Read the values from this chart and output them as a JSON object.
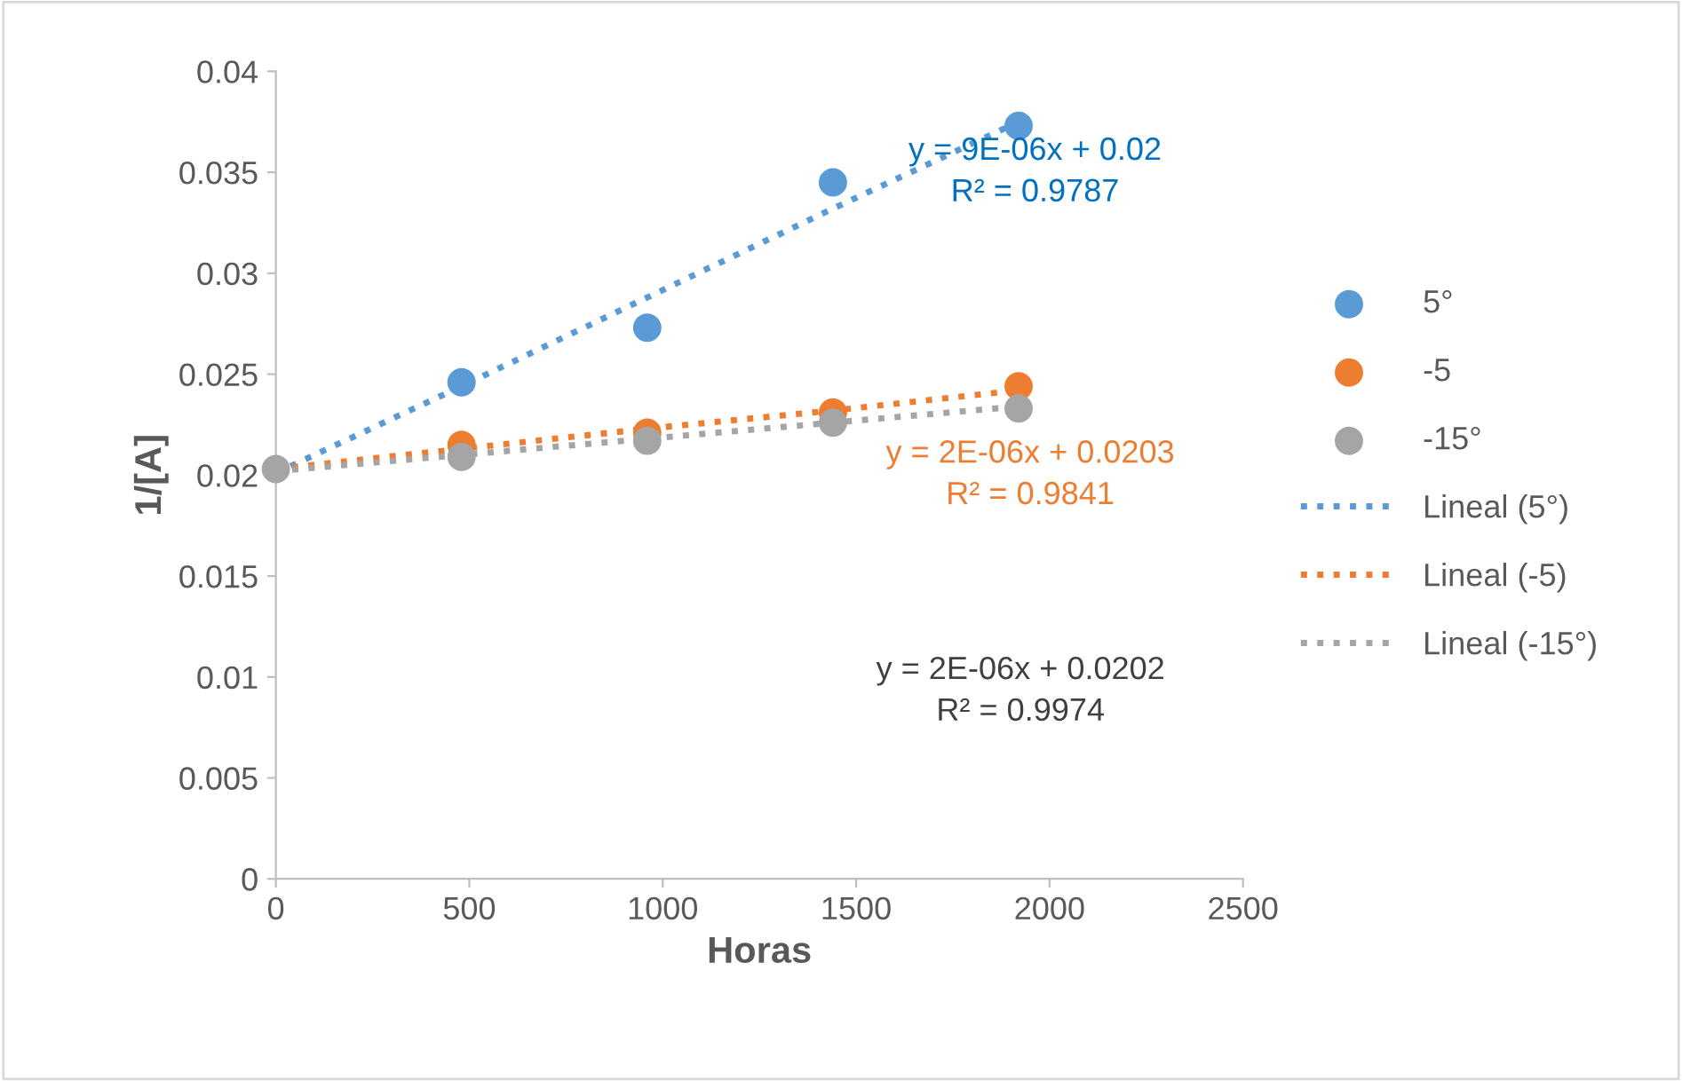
{
  "chart_data": {
    "type": "scatter",
    "xlabel": "Horas",
    "ylabel": "1/[A]",
    "xlim": [
      0,
      2500
    ],
    "xticks": [
      0,
      500,
      1000,
      1500,
      2000,
      2500
    ],
    "ylim": [
      0,
      0.04
    ],
    "yticks": [
      0,
      0.005,
      0.01,
      0.015,
      0.02,
      0.025,
      0.03,
      0.035,
      0.04
    ],
    "grid": false,
    "legend": "right",
    "x": [
      0,
      480,
      960,
      1440,
      1920
    ],
    "series": [
      {
        "name": "5°",
        "marker": "circle",
        "color": "#5b9bd5",
        "values": [
          null,
          0.0246,
          0.0273,
          0.0345,
          0.0373
        ]
      },
      {
        "name": "-5",
        "marker": "circle",
        "color": "#ed7d31",
        "values": [
          null,
          0.0215,
          0.0221,
          0.0231,
          0.0244
        ]
      },
      {
        "name": "-15°",
        "marker": "circle",
        "color": "#a5a5a5",
        "values": [
          0.0203,
          0.0209,
          0.0217,
          0.0226,
          0.0233
        ]
      },
      {
        "name": "Lineal (5°)",
        "type": "line",
        "line_style": "dotted",
        "marker": "none",
        "color": "#5b9bd5",
        "values": [
          0.0201,
          0.0244,
          0.0288,
          0.0332,
          0.0375
        ]
      },
      {
        "name": "Lineal (-5)",
        "type": "line",
        "line_style": "dotted",
        "marker": "none",
        "color": "#ed7d31",
        "values": [
          0.0203,
          0.0213,
          0.0223,
          0.0232,
          0.0242
        ]
      },
      {
        "name": "Lineal (-15°)",
        "type": "line",
        "line_style": "dotted",
        "marker": "none",
        "color": "#a5a5a5",
        "values": [
          0.0202,
          0.021,
          0.0218,
          0.0226,
          0.0234
        ]
      }
    ],
    "annotations": [
      "y = 9E-06x + 0.02\nR² = 0.9787",
      "y = 2E-06x + 0.0203\nR² = 0.9841",
      "y = 2E-06x + 0.0202\nR² = 0.9974"
    ]
  }
}
